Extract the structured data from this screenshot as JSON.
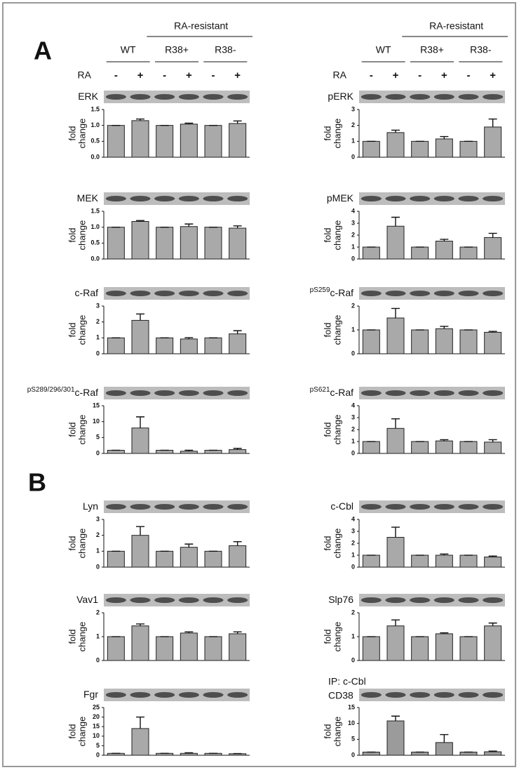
{
  "figure": {
    "panel_labels": [
      "A",
      "B"
    ],
    "group_label": "RA-resistant",
    "groups": [
      "WT",
      "R38+",
      "R38-"
    ],
    "row_label": "RA",
    "treatments": [
      "-",
      "+",
      "-",
      "+",
      "-",
      "+"
    ]
  },
  "chart_data": [
    {
      "type": "bar",
      "title": "ERK",
      "ylabel": [
        "fold",
        "change"
      ],
      "color": "#a9a9a9",
      "values": [
        1,
        1.15,
        1,
        1.04,
        1,
        1.06
      ],
      "errors": [
        0,
        0.05,
        0,
        0.03,
        0,
        0.08
      ],
      "ylim": [
        0,
        1.5
      ],
      "yticks": [
        {
          "value": 0,
          "label": "0.0"
        },
        {
          "value": 0.5,
          "label": "0.5"
        },
        {
          "value": 1,
          "label": "1.0"
        },
        {
          "value": 1.5,
          "label": "1.5"
        }
      ]
    },
    {
      "type": "bar",
      "title": "pERK",
      "ylabel": [
        "fold",
        "change"
      ],
      "color": "#a9a9a9",
      "values": [
        1,
        1.55,
        1,
        1.15,
        1,
        1.9
      ],
      "errors": [
        0,
        0.15,
        0,
        0.15,
        0,
        0.5
      ],
      "ylim": [
        0,
        3
      ],
      "yticks": [
        0,
        1,
        2,
        3
      ]
    },
    {
      "type": "bar",
      "title": "MEK",
      "ylabel": [
        "fold",
        "change"
      ],
      "color": "#a9a9a9",
      "values": [
        1,
        1.18,
        1,
        1.02,
        1,
        0.97
      ],
      "errors": [
        0,
        0.03,
        0,
        0.08,
        0,
        0.07
      ],
      "ylim": [
        0,
        1.5
      ],
      "yticks": [
        {
          "value": 0,
          "label": "0.0"
        },
        {
          "value": 0.5,
          "label": "0.5"
        },
        {
          "value": 1,
          "label": "1.0"
        },
        {
          "value": 1.5,
          "label": "1.5"
        }
      ]
    },
    {
      "type": "bar",
      "title": "pMEK",
      "ylabel": [
        "fold",
        "change"
      ],
      "color": "#a9a9a9",
      "values": [
        1,
        2.75,
        1,
        1.5,
        1,
        1.8
      ],
      "errors": [
        0,
        0.75,
        0,
        0.15,
        0,
        0.35
      ],
      "ylim": [
        0,
        4
      ],
      "yticks": [
        0,
        1,
        2,
        3,
        4
      ]
    },
    {
      "type": "bar",
      "title": "c-Raf",
      "ylabel": [
        "fold",
        "change"
      ],
      "color": "#a9a9a9",
      "values": [
        1,
        2.1,
        1,
        0.93,
        1,
        1.25
      ],
      "errors": [
        0,
        0.4,
        0,
        0.08,
        0,
        0.2
      ],
      "ylim": [
        0,
        3
      ],
      "yticks": [
        0,
        1,
        2,
        3
      ]
    },
    {
      "type": "bar",
      "title_prefix": "pS259",
      "title": "c-Raf",
      "ylabel": [
        "fold",
        "change"
      ],
      "color": "#a9a9a9",
      "values": [
        1,
        1.5,
        1,
        1.05,
        1,
        0.9
      ],
      "errors": [
        0,
        0.4,
        0,
        0.1,
        0,
        0.04
      ],
      "ylim": [
        0,
        2
      ],
      "yticks": [
        0,
        1,
        2
      ]
    },
    {
      "type": "bar",
      "title_prefix": "pS289/296/301",
      "title": "c-Raf",
      "ylabel": [
        "fold",
        "change"
      ],
      "color": "#a9a9a9",
      "values": [
        1,
        8,
        1,
        0.7,
        1,
        1.2
      ],
      "errors": [
        0,
        3.5,
        0,
        0.3,
        0,
        0.4
      ],
      "ylim": [
        0,
        15
      ],
      "yticks": [
        0,
        5,
        10,
        15
      ]
    },
    {
      "type": "bar",
      "title_prefix": "pS621",
      "title": "c-Raf",
      "ylabel": [
        "fold",
        "change"
      ],
      "color": "#a9a9a9",
      "values": [
        1,
        2.1,
        1,
        1.05,
        1,
        0.95
      ],
      "errors": [
        0,
        0.8,
        0,
        0.1,
        0,
        0.2
      ],
      "ylim": [
        0,
        4
      ],
      "yticks": [
        0,
        1,
        2,
        3,
        4
      ]
    },
    {
      "type": "bar",
      "title": "Lyn",
      "ylabel": [
        "fold",
        "change"
      ],
      "color": "#a9a9a9",
      "values": [
        1,
        2,
        1,
        1.25,
        1,
        1.35
      ],
      "errors": [
        0,
        0.55,
        0,
        0.2,
        0,
        0.25
      ],
      "ylim": [
        0,
        3
      ],
      "yticks": [
        0,
        1,
        2,
        3
      ]
    },
    {
      "type": "bar",
      "title": "c-Cbl",
      "ylabel": [
        "fold",
        "change"
      ],
      "color": "#a9a9a9",
      "values": [
        1,
        2.5,
        1,
        1,
        1,
        0.85
      ],
      "errors": [
        0,
        0.85,
        0,
        0.1,
        0,
        0.08
      ],
      "ylim": [
        0,
        4
      ],
      "yticks": [
        0,
        1,
        2,
        3,
        4
      ]
    },
    {
      "type": "bar",
      "title": "Vav1",
      "ylabel": [
        "fold",
        "change"
      ],
      "color": "#a9a9a9",
      "values": [
        1,
        1.45,
        1,
        1.15,
        1,
        1.12
      ],
      "errors": [
        0,
        0.08,
        0,
        0.05,
        0,
        0.08
      ],
      "ylim": [
        0,
        2
      ],
      "yticks": [
        0,
        1,
        2
      ]
    },
    {
      "type": "bar",
      "title": "Slp76",
      "ylabel": [
        "fold",
        "change"
      ],
      "color": "#a9a9a9",
      "values": [
        1,
        1.45,
        1,
        1.12,
        1,
        1.45
      ],
      "errors": [
        0,
        0.25,
        0,
        0.04,
        0,
        0.12
      ],
      "ylim": [
        0,
        2
      ],
      "yticks": [
        0,
        1,
        2
      ]
    },
    {
      "type": "bar",
      "title": "Fgr",
      "ylabel": [
        "fold",
        "change"
      ],
      "color": "#a9a9a9",
      "values": [
        1,
        14,
        1,
        1,
        1,
        0.8
      ],
      "errors": [
        0,
        6,
        0,
        0.3,
        0,
        0.1
      ],
      "ylim": [
        0,
        25
      ],
      "yticks": [
        0,
        5,
        10,
        15,
        20,
        25
      ]
    },
    {
      "type": "bar",
      "title_note": "IP: c-Cbl",
      "title": "CD38",
      "ylabel": [
        "fold",
        "change"
      ],
      "color": "#9b9b9b",
      "values": [
        1,
        10.8,
        1,
        4,
        1,
        1.1
      ],
      "errors": [
        0,
        1.5,
        0,
        2.5,
        0,
        0.2
      ],
      "ylim": [
        0,
        15
      ],
      "yticks": [
        0,
        5,
        10,
        15
      ]
    }
  ]
}
